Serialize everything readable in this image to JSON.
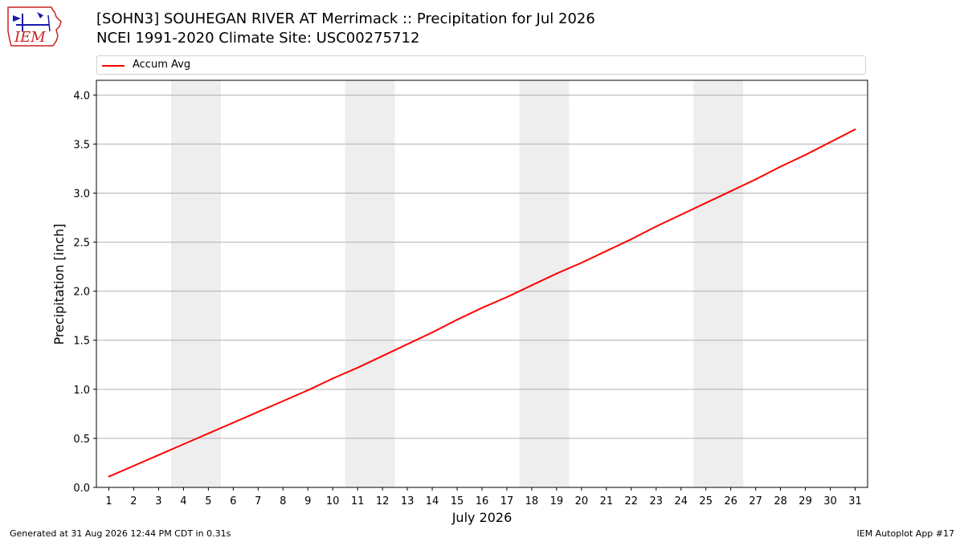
{
  "header": {
    "title": "[SOHN3] SOUHEGAN RIVER  AT Merrimack :: Precipitation for Jul 2026",
    "subtitle": "NCEI 1991-2020 Climate Site: USC00275712"
  },
  "logo": {
    "text": "IEM",
    "color": "#1a1aa8",
    "accent": "#cc2222"
  },
  "legend": {
    "label": "Accum Avg",
    "color": "#ff0000"
  },
  "footer": {
    "left": "Generated at 31 Aug 2026 12:44 PM CDT in 0.31s",
    "right": "IEM Autoplot App #17"
  },
  "chart_data": {
    "type": "line",
    "title": "[SOHN3] SOUHEGAN RIVER  AT Merrimack :: Precipitation for Jul 2026",
    "xlabel": "July 2026",
    "ylabel": "Precipitation [inch]",
    "x": [
      1,
      2,
      3,
      4,
      5,
      6,
      7,
      8,
      9,
      10,
      11,
      12,
      13,
      14,
      15,
      16,
      17,
      18,
      19,
      20,
      21,
      22,
      23,
      24,
      25,
      26,
      27,
      28,
      29,
      30,
      31
    ],
    "ylim": [
      0,
      4.15
    ],
    "yticks": [
      0.0,
      0.5,
      1.0,
      1.5,
      2.0,
      2.5,
      3.0,
      3.5,
      4.0
    ],
    "ytick_labels": [
      "0.0",
      "0.5",
      "1.0",
      "1.5",
      "2.0",
      "2.5",
      "3.0",
      "3.5",
      "4.0"
    ],
    "grid": "horizontal",
    "legend_position": "top",
    "weekend_shading": [
      [
        3.5,
        5.5
      ],
      [
        10.5,
        12.5
      ],
      [
        17.5,
        19.5
      ],
      [
        24.5,
        26.5
      ]
    ],
    "series": [
      {
        "name": "Accum Avg",
        "color": "#ff0000",
        "values": [
          0.11,
          0.22,
          0.33,
          0.44,
          0.55,
          0.66,
          0.77,
          0.88,
          0.99,
          1.11,
          1.22,
          1.34,
          1.46,
          1.58,
          1.71,
          1.83,
          1.94,
          2.06,
          2.18,
          2.29,
          2.41,
          2.53,
          2.66,
          2.78,
          2.9,
          3.02,
          3.14,
          3.27,
          3.39,
          3.52,
          3.65
        ]
      }
    ]
  }
}
